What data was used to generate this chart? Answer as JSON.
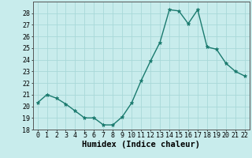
{
  "x": [
    0,
    1,
    2,
    3,
    4,
    5,
    6,
    7,
    8,
    9,
    10,
    11,
    12,
    13,
    14,
    15,
    16,
    17,
    18,
    19,
    20,
    21,
    22
  ],
  "y": [
    20.3,
    21.0,
    20.7,
    20.2,
    19.6,
    19.0,
    19.0,
    18.4,
    18.4,
    19.1,
    20.3,
    22.2,
    23.9,
    25.5,
    28.3,
    28.2,
    27.1,
    28.3,
    25.1,
    24.9,
    23.7,
    23.0,
    22.6
  ],
  "line_color": "#1a7a6e",
  "marker": "*",
  "marker_color": "#1a7a6e",
  "bg_color": "#c8ecec",
  "grid_color": "#a8d8d8",
  "xlabel": "Humidex (Indice chaleur)",
  "ylim": [
    18,
    29
  ],
  "yticks": [
    18,
    19,
    20,
    21,
    22,
    23,
    24,
    25,
    26,
    27,
    28
  ],
  "xticks": [
    0,
    1,
    2,
    3,
    4,
    5,
    6,
    7,
    8,
    9,
    10,
    11,
    12,
    13,
    14,
    15,
    16,
    17,
    18,
    19,
    20,
    21,
    22
  ],
  "xlabel_fontsize": 7.5,
  "tick_fontsize": 6,
  "line_width": 1.0,
  "marker_size": 3.5
}
